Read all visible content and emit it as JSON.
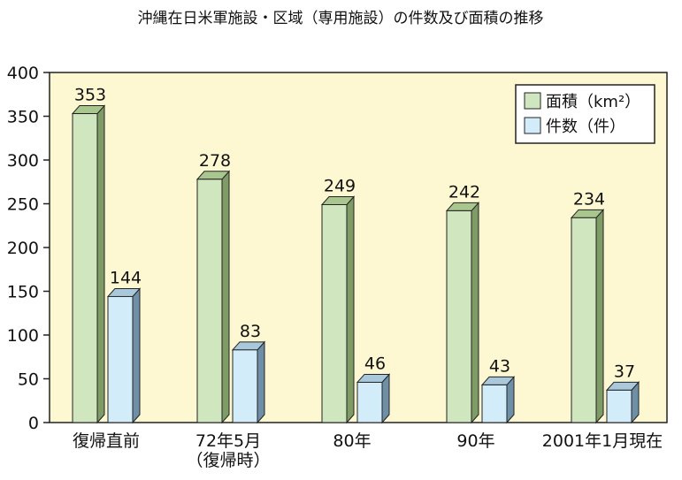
{
  "chart_data": {
    "type": "bar",
    "title": "沖縄在日米軍施設・区域（専用施設）の件数及び面積の推移",
    "categories": [
      [
        "復帰直前"
      ],
      [
        "72年5月",
        "（復帰時）"
      ],
      [
        "80年"
      ],
      [
        "90年"
      ],
      [
        "2001年1月現在"
      ]
    ],
    "series": [
      {
        "name": "面積（km²）",
        "values": [
          353,
          278,
          249,
          242,
          234
        ],
        "color": "#cfe6bf",
        "top_color": "#a9c68f",
        "side_color": "#7f9b66"
      },
      {
        "name": "件数（件）",
        "values": [
          144,
          83,
          46,
          43,
          37
        ],
        "color": "#d3ecfa",
        "top_color": "#a9c8db",
        "side_color": "#6f8fa6"
      }
    ],
    "ylim": [
      0,
      400
    ],
    "yticks": [
      0,
      50,
      100,
      150,
      200,
      250,
      300,
      350,
      400
    ],
    "grid": false,
    "legend": "top-right",
    "background": "#fdf8d2"
  }
}
